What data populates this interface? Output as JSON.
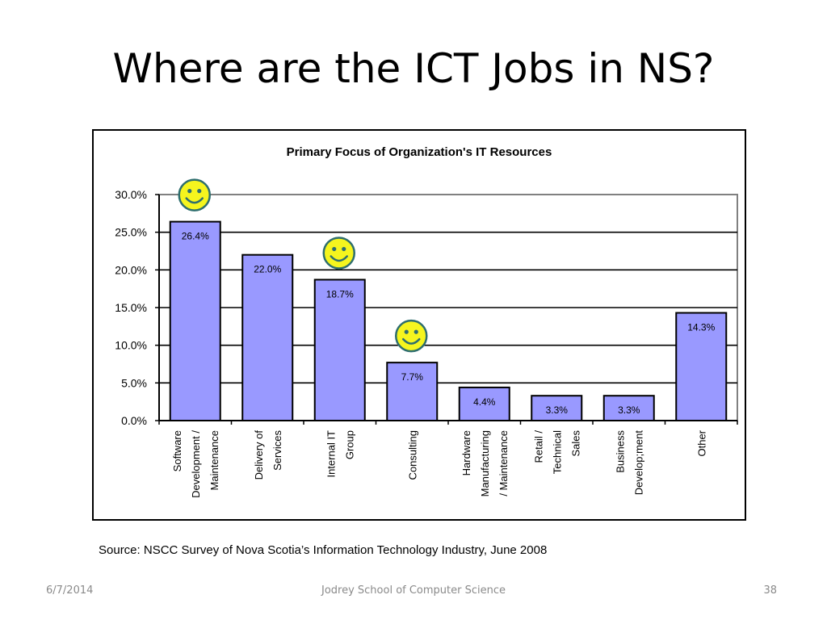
{
  "slide": {
    "title": "Where are the ICT Jobs in NS?",
    "source": "Source: NSCC Survey of Nova Scotia’s Information Technology Industry, June 2008",
    "footer_date": "6/7/2014",
    "footer_center": "Jodrey School of Computer Science",
    "page_number": "38"
  },
  "colors": {
    "bar_fill": "#9999ff",
    "bar_stroke": "#000000",
    "smiley_fill": "#f5f51e",
    "smiley_stroke": "#2e6e6e"
  },
  "chart_data": {
    "type": "bar",
    "title": "Primary Focus of Organization's IT Resources",
    "xlabel": "",
    "ylabel": "",
    "ylim": [
      0,
      30
    ],
    "yticks": [
      "0.0%",
      "5.0%",
      "10.0%",
      "15.0%",
      "20.0%",
      "25.0%",
      "30.0%"
    ],
    "grid": true,
    "categories": [
      [
        "Software",
        "Development /",
        "Maintenance"
      ],
      [
        "Delivery of",
        "Services"
      ],
      [
        "Internal IT",
        "Group"
      ],
      [
        "Consulting"
      ],
      [
        "Hardware",
        "Manufacturing",
        "/ Maintenance"
      ],
      [
        "Retail /",
        "Technical",
        "Sales"
      ],
      [
        "Business",
        "Develop;ment"
      ],
      [
        "Other"
      ]
    ],
    "values": [
      26.4,
      22.0,
      18.7,
      7.7,
      4.4,
      3.3,
      3.3,
      14.3
    ],
    "data_labels": [
      "26.4%",
      "22.0%",
      "18.7%",
      "7.7%",
      "4.4%",
      "3.3%",
      "3.3%",
      "14.3%"
    ],
    "annotations": [
      {
        "type": "smiley-icon",
        "bar_index": 0
      },
      {
        "type": "smiley-icon",
        "bar_index": 2
      },
      {
        "type": "smiley-icon",
        "bar_index": 3
      }
    ]
  }
}
